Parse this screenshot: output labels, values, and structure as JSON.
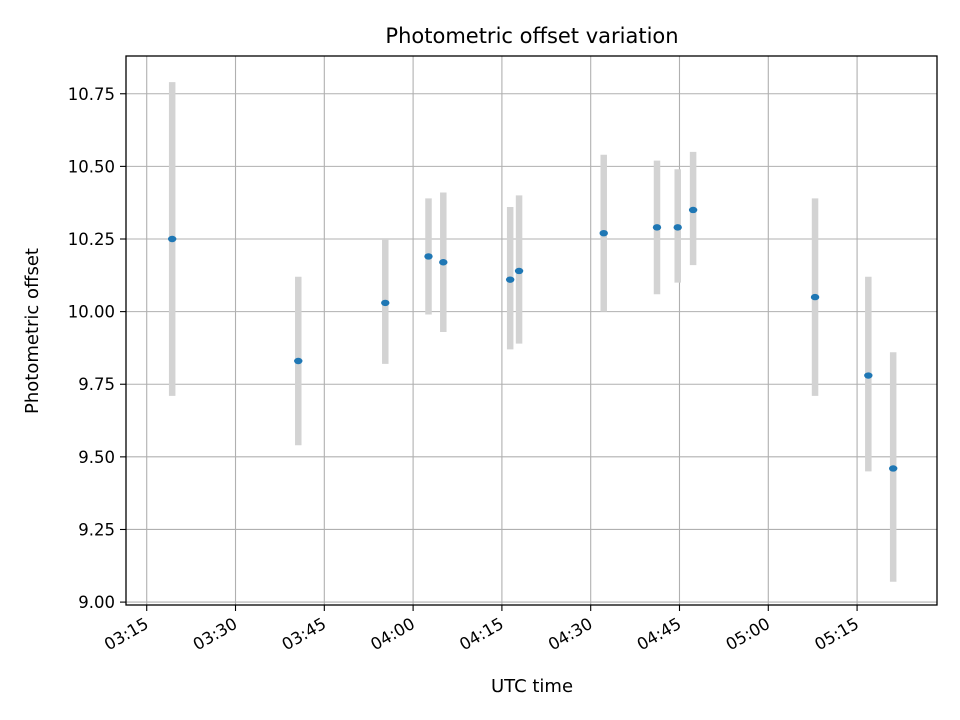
{
  "chart_data": {
    "type": "scatter",
    "title": "Photometric offset variation",
    "xlabel": "UTC time",
    "ylabel": "Photometric offset",
    "grid": true,
    "x_unit": "minutes after 03:00 UTC",
    "xlim": [
      191.5,
      328.5
    ],
    "ylim": [
      8.99,
      10.88
    ],
    "xticks": [
      {
        "value": 195,
        "label": "03:15"
      },
      {
        "value": 210,
        "label": "03:30"
      },
      {
        "value": 225,
        "label": "03:45"
      },
      {
        "value": 240,
        "label": "04:00"
      },
      {
        "value": 255,
        "label": "04:15"
      },
      {
        "value": 270,
        "label": "04:30"
      },
      {
        "value": 285,
        "label": "04:45"
      },
      {
        "value": 300,
        "label": "05:00"
      },
      {
        "value": 315,
        "label": "05:15"
      }
    ],
    "yticks": [
      {
        "value": 9.0,
        "label": "9.00"
      },
      {
        "value": 9.25,
        "label": "9.25"
      },
      {
        "value": 9.5,
        "label": "9.50"
      },
      {
        "value": 9.75,
        "label": "9.75"
      },
      {
        "value": 10.0,
        "label": "10.00"
      },
      {
        "value": 10.25,
        "label": "10.25"
      },
      {
        "value": 10.5,
        "label": "10.50"
      },
      {
        "value": 10.75,
        "label": "10.75"
      }
    ],
    "series": [
      {
        "name": "Photometric offset",
        "marker_color": "#1f77b4",
        "errorbar_color": "#d3d3d3",
        "points": [
          {
            "x": 199.3,
            "y": 10.25,
            "low": 9.71,
            "high": 10.79
          },
          {
            "x": 220.6,
            "y": 9.83,
            "low": 9.54,
            "high": 10.12
          },
          {
            "x": 235.3,
            "y": 10.03,
            "low": 9.82,
            "high": 10.25
          },
          {
            "x": 242.6,
            "y": 10.19,
            "low": 9.99,
            "high": 10.39
          },
          {
            "x": 245.1,
            "y": 10.17,
            "low": 9.93,
            "high": 10.41
          },
          {
            "x": 256.4,
            "y": 10.11,
            "low": 9.87,
            "high": 10.36
          },
          {
            "x": 257.9,
            "y": 10.14,
            "low": 9.89,
            "high": 10.4
          },
          {
            "x": 272.2,
            "y": 10.27,
            "low": 10.0,
            "high": 10.54
          },
          {
            "x": 281.2,
            "y": 10.29,
            "low": 10.06,
            "high": 10.52
          },
          {
            "x": 284.7,
            "y": 10.29,
            "low": 10.1,
            "high": 10.49
          },
          {
            "x": 287.3,
            "y": 10.35,
            "low": 10.16,
            "high": 10.55
          },
          {
            "x": 307.9,
            "y": 10.05,
            "low": 9.71,
            "high": 10.39
          },
          {
            "x": 316.9,
            "y": 9.78,
            "low": 9.45,
            "high": 10.12
          },
          {
            "x": 321.1,
            "y": 9.46,
            "low": 9.07,
            "high": 9.86
          }
        ]
      }
    ]
  }
}
